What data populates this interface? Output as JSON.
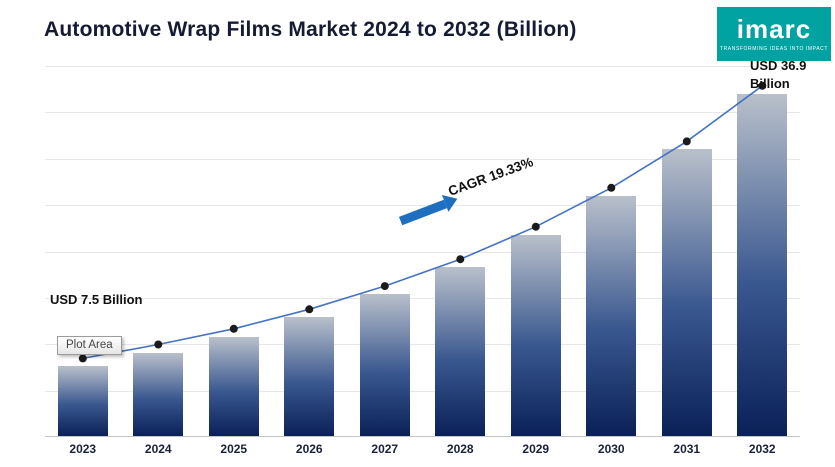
{
  "header": {
    "title": "Automotive Wrap Films Market 2024 to 2032 (Billion)",
    "logo": {
      "brand": "imarc",
      "tagline": "TRANSFORMING IDEAS INTO IMPACT"
    }
  },
  "colors": {
    "brand_teal": "#00a2a2",
    "title_color": "#151b32",
    "bar_top": "#b9c0cb",
    "bar_mid": "#3a5890",
    "bar_bottom": "#0a2158",
    "line_color": "#4472c4",
    "marker_color": "#1b1b1b",
    "grid_color": "#e7e7e7",
    "axis_color": "#c4c4c4",
    "arrow_color": "#1f6fc0",
    "label_color": "#1a2138"
  },
  "chart_data": {
    "type": "bar",
    "title": "Automotive Wrap Films Market 2024 to 2032 (Billion)",
    "categories": [
      "2023",
      "2024",
      "2025",
      "2026",
      "2027",
      "2028",
      "2029",
      "2030",
      "2031",
      "2032"
    ],
    "values": [
      7.5,
      9.0,
      10.7,
      12.8,
      15.3,
      18.2,
      21.7,
      25.9,
      30.9,
      36.9
    ],
    "xlabel": "",
    "ylabel": "",
    "ylim": [
      0,
      40
    ],
    "grid": true,
    "grid_step": 5,
    "line_overlay": true,
    "legend": "none",
    "annotations": {
      "start_label": "USD 7.5 Billion",
      "end_label": "USD 36.9 Billion",
      "cagr_label": "CAGR 19.33%",
      "plot_area_tooltip": "Plot Area"
    }
  }
}
